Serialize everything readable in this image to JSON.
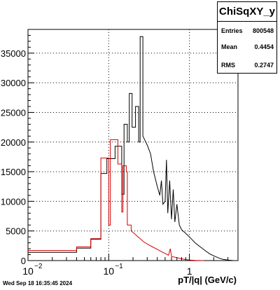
{
  "stats": {
    "title": "ChiSqXY_y",
    "rows": [
      {
        "label": "Entries",
        "value": "800548"
      },
      {
        "label": "Mean",
        "value": "0.4454"
      },
      {
        "label": "RMS",
        "value": "0.2747"
      }
    ]
  },
  "timestamp": "Wed Sep 18 16:35:45 2024",
  "chart_data": {
    "type": "line",
    "title": "",
    "xlabel": "pT/|q| (GeV/c)",
    "ylabel": "",
    "xscale": "log",
    "xlim": [
      0.01,
      4.0
    ],
    "ylim": [
      0,
      39000
    ],
    "x_ticks": [
      {
        "value": 0.01,
        "label": "10"
      },
      {
        "value": 0.1,
        "label": "10"
      },
      {
        "value": 1,
        "label": "1"
      }
    ],
    "x_tick_exponents": [
      "−2",
      "−1",
      ""
    ],
    "y_ticks": [
      0,
      5000,
      10000,
      15000,
      20000,
      25000,
      30000,
      35000
    ],
    "grid": true,
    "series": [
      {
        "color": "#000000",
        "style": "histogram",
        "points": [
          [
            0.01,
            1400
          ],
          [
            0.04,
            1400
          ],
          [
            0.04,
            2100
          ],
          [
            0.06,
            2100
          ],
          [
            0.06,
            3600
          ],
          [
            0.08,
            3600
          ],
          [
            0.08,
            14700
          ],
          [
            0.095,
            14700
          ],
          [
            0.095,
            17200
          ],
          [
            0.12,
            17200
          ],
          [
            0.12,
            19300
          ],
          [
            0.145,
            19300
          ],
          [
            0.145,
            11200
          ],
          [
            0.155,
            11200
          ],
          [
            0.155,
            23000
          ],
          [
            0.17,
            23000
          ],
          [
            0.17,
            20000
          ],
          [
            0.18,
            20000
          ],
          [
            0.18,
            28200
          ],
          [
            0.195,
            28200
          ],
          [
            0.195,
            22500
          ],
          [
            0.215,
            22500
          ],
          [
            0.215,
            26000
          ],
          [
            0.235,
            26000
          ],
          [
            0.235,
            20000
          ],
          [
            0.245,
            20000
          ],
          [
            0.245,
            37800
          ],
          [
            0.265,
            37800
          ],
          [
            0.265,
            21000
          ],
          [
            0.3,
            19500
          ],
          [
            0.33,
            18000
          ],
          [
            0.36,
            15000
          ],
          [
            0.4,
            12500
          ],
          [
            0.43,
            11000
          ],
          [
            0.45,
            13500
          ],
          [
            0.47,
            9500
          ],
          [
            0.5,
            10000
          ],
          [
            0.52,
            17000
          ],
          [
            0.54,
            8000
          ],
          [
            0.57,
            13500
          ],
          [
            0.6,
            7000
          ],
          [
            0.63,
            12000
          ],
          [
            0.66,
            6500
          ],
          [
            0.7,
            9500
          ],
          [
            0.75,
            6000
          ],
          [
            0.8,
            5200
          ],
          [
            0.9,
            4600
          ],
          [
            1.0,
            4000
          ],
          [
            1.1,
            3400
          ],
          [
            1.2,
            2900
          ],
          [
            1.4,
            2200
          ],
          [
            1.6,
            1600
          ],
          [
            1.8,
            1100
          ],
          [
            2.0,
            800
          ],
          [
            2.3,
            450
          ],
          [
            2.6,
            200
          ],
          [
            3.0,
            80
          ],
          [
            3.5,
            0
          ]
        ]
      },
      {
        "color": "#d40000",
        "style": "histogram",
        "points": [
          [
            0.01,
            1700
          ],
          [
            0.04,
            1700
          ],
          [
            0.04,
            2300
          ],
          [
            0.06,
            2300
          ],
          [
            0.06,
            3700
          ],
          [
            0.08,
            3700
          ],
          [
            0.08,
            17300
          ],
          [
            0.1,
            17300
          ],
          [
            0.1,
            6000
          ],
          [
            0.105,
            6000
          ],
          [
            0.105,
            20400
          ],
          [
            0.13,
            20400
          ],
          [
            0.13,
            16300
          ],
          [
            0.145,
            16300
          ],
          [
            0.145,
            8200
          ],
          [
            0.15,
            8200
          ],
          [
            0.15,
            16000
          ],
          [
            0.165,
            16000
          ],
          [
            0.165,
            15000
          ],
          [
            0.17,
            15000
          ],
          [
            0.17,
            6000
          ],
          [
            0.19,
            6000
          ],
          [
            0.19,
            5000
          ],
          [
            0.21,
            4500
          ],
          [
            0.24,
            3800
          ],
          [
            0.27,
            3200
          ],
          [
            0.3,
            2800
          ],
          [
            0.35,
            2300
          ],
          [
            0.4,
            1900
          ],
          [
            0.45,
            1500
          ],
          [
            0.5,
            1200
          ],
          [
            0.55,
            900
          ],
          [
            0.58,
            2000
          ],
          [
            0.6,
            700
          ],
          [
            0.7,
            500
          ],
          [
            0.8,
            300
          ],
          [
            0.9,
            180
          ],
          [
            1.0,
            100
          ],
          [
            1.2,
            40
          ],
          [
            1.5,
            0
          ]
        ]
      }
    ]
  }
}
